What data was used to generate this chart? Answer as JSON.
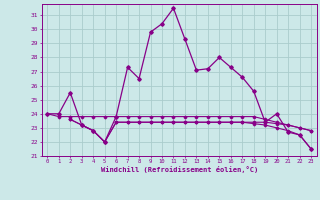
{
  "xlabel": "Windchill (Refroidissement éolien,°C)",
  "bg_color": "#cce8e8",
  "grid_color": "#aacccc",
  "line_color": "#880088",
  "xmin": -0.5,
  "xmax": 23.5,
  "ymin": 21,
  "ymax": 31.8,
  "yticks": [
    21,
    22,
    23,
    24,
    25,
    26,
    27,
    28,
    29,
    30,
    31
  ],
  "xticks": [
    0,
    1,
    2,
    3,
    4,
    5,
    6,
    7,
    8,
    9,
    10,
    11,
    12,
    13,
    14,
    15,
    16,
    17,
    18,
    19,
    20,
    21,
    22,
    23
  ],
  "series1_x": [
    0,
    1,
    2,
    3,
    4,
    5,
    6,
    7,
    8,
    9,
    10,
    11,
    12,
    13,
    14,
    15,
    16,
    17,
    18,
    19,
    20,
    21,
    22,
    23
  ],
  "series1_y": [
    24.0,
    24.0,
    25.5,
    23.2,
    22.8,
    22.0,
    23.8,
    27.3,
    26.5,
    29.8,
    30.4,
    31.5,
    29.3,
    27.1,
    27.2,
    28.0,
    27.3,
    26.6,
    25.6,
    23.4,
    24.0,
    22.7,
    22.5,
    21.5
  ],
  "series2_x": [
    0,
    1,
    2,
    3,
    4,
    5,
    6,
    7,
    8,
    9,
    10,
    11,
    12,
    13,
    14,
    15,
    16,
    17,
    18,
    19,
    20,
    21,
    22,
    23
  ],
  "series2_y": [
    24.0,
    23.8,
    23.8,
    23.8,
    23.8,
    23.8,
    23.8,
    23.8,
    23.8,
    23.8,
    23.8,
    23.8,
    23.8,
    23.8,
    23.8,
    23.8,
    23.8,
    23.8,
    23.8,
    23.6,
    23.4,
    23.2,
    23.0,
    22.8
  ],
  "series3_x": [
    2,
    3,
    4,
    5,
    6,
    7,
    8,
    9,
    10,
    11,
    12,
    13,
    14,
    15,
    16,
    17,
    18,
    19,
    20,
    21,
    22,
    23
  ],
  "series3_y": [
    23.6,
    23.2,
    22.8,
    22.0,
    23.4,
    23.4,
    23.4,
    23.4,
    23.4,
    23.4,
    23.4,
    23.4,
    23.4,
    23.4,
    23.4,
    23.4,
    23.3,
    23.2,
    23.0,
    22.8,
    22.5,
    21.5
  ],
  "series4_x": [
    2,
    3,
    4,
    5,
    6,
    7,
    8,
    9,
    10,
    11,
    12,
    13,
    14,
    15,
    16,
    17,
    18,
    19,
    20,
    21,
    22,
    23
  ],
  "series4_y": [
    23.6,
    23.2,
    22.8,
    22.0,
    23.4,
    23.4,
    23.4,
    23.4,
    23.4,
    23.4,
    23.4,
    23.4,
    23.4,
    23.4,
    23.4,
    23.4,
    23.4,
    23.4,
    23.3,
    23.2,
    23.0,
    22.8
  ]
}
